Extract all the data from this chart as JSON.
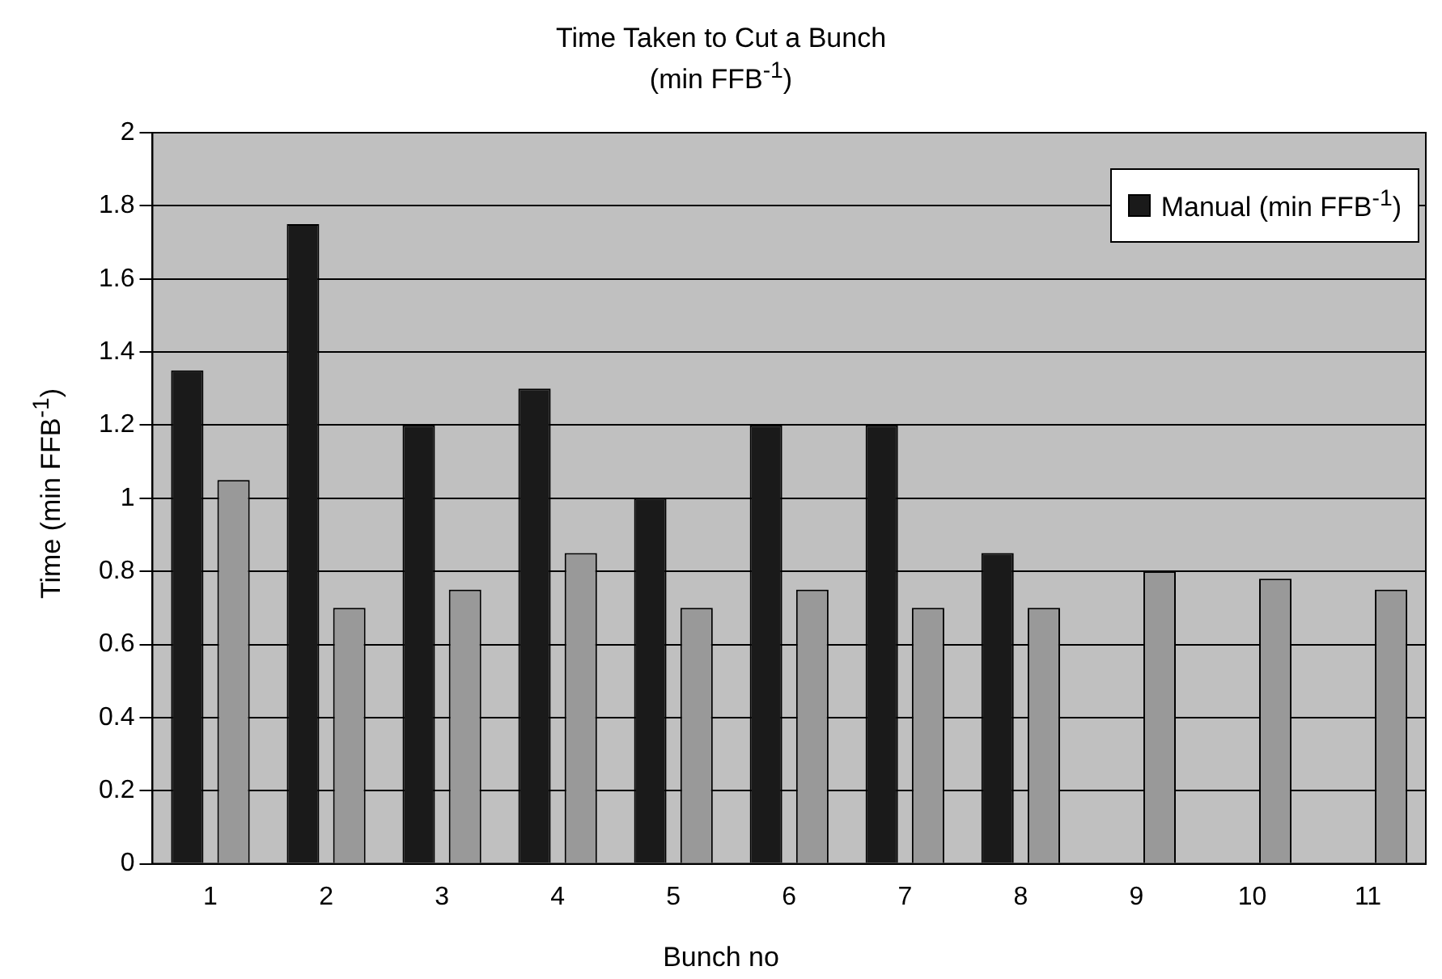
{
  "chart_data": {
    "type": "bar",
    "title": "Time Taken to Cut a Bunch",
    "subtitle": "(min FFB$^{-1}$)",
    "xlabel": "Bunch no",
    "ylabel": "Time (min FFB$^{-1}$)",
    "categories": [
      "1",
      "2",
      "3",
      "4",
      "5",
      "6",
      "7",
      "8",
      "9",
      "10",
      "11"
    ],
    "series": [
      {
        "name": "Manual (min FFB$^{-1}$)",
        "color": "#1a1a1a",
        "values": [
          1.35,
          1.75,
          1.2,
          1.3,
          1.0,
          1.2,
          1.2,
          0.85,
          null,
          null,
          null
        ]
      },
      {
        "color": "#999999",
        "values": [
          1.05,
          0.7,
          0.75,
          0.85,
          0.7,
          0.75,
          0.7,
          0.7,
          0.8,
          0.78,
          0.75
        ]
      }
    ],
    "ylim": [
      0,
      2
    ],
    "yticks": [
      0,
      0.2,
      0.4,
      0.6,
      0.8,
      1,
      1.2,
      1.4,
      1.6,
      1.8,
      2
    ],
    "grid": "y",
    "legend": "top right"
  }
}
